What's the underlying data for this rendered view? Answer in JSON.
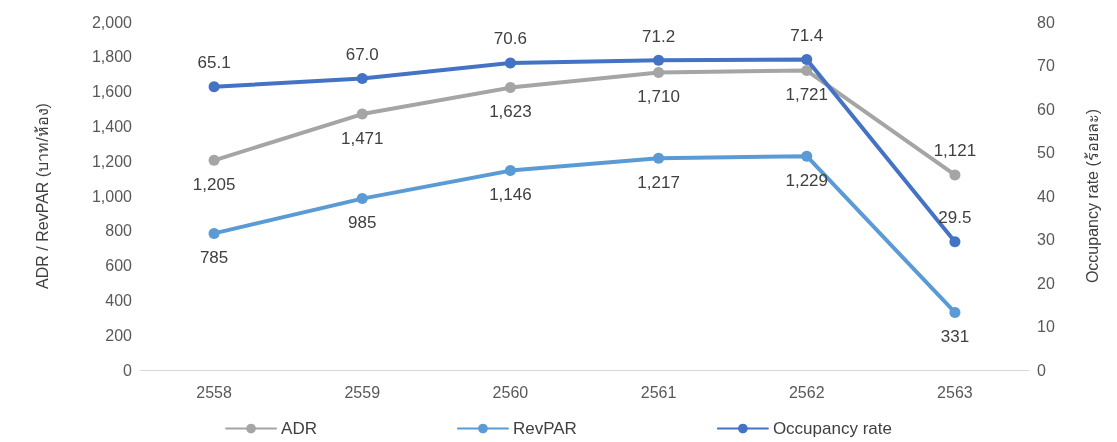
{
  "chart_data": {
    "type": "line",
    "ylabel": "ADR / RevPAR (บาท/ห้อง)",
    "y2label": "Occupancy rate (ร้อยละ)",
    "categories": [
      "2558",
      "2559",
      "2560",
      "2561",
      "2562",
      "2563"
    ],
    "series": [
      {
        "name": "ADR",
        "color": "#a5a5a5",
        "values": [
          1205,
          1471,
          1623,
          1710,
          1721,
          1121
        ],
        "value_labels": [
          "1,205",
          "1,471",
          "1,623",
          "1,710",
          "1,721",
          "1,121"
        ]
      },
      {
        "name": "RevPAR",
        "color": "#5b9bd5",
        "values": [
          785,
          985,
          1146,
          1217,
          1229,
          331
        ],
        "value_labels": [
          "785",
          "985",
          "1,146",
          "1,217",
          "1,229",
          "331"
        ]
      },
      {
        "name": "Occupancy rate",
        "color": "#4472c4",
        "axis": "y2",
        "values": [
          65.1,
          67.0,
          70.6,
          71.2,
          71.4,
          29.5
        ],
        "value_labels": [
          "65.1",
          "67.0",
          "70.6",
          "71.2",
          "71.4",
          "29.5"
        ]
      }
    ],
    "ylim": [
      0,
      2000
    ],
    "yticks": [
      0,
      200,
      400,
      600,
      800,
      {
        "value": 1000,
        "label": "1,000"
      },
      {
        "value": 1200,
        "label": "1,200"
      },
      {
        "value": 1400,
        "label": "1,400"
      },
      {
        "value": 1600,
        "label": "1,600"
      },
      {
        "value": 1800,
        "label": "1,800"
      },
      {
        "value": 2000,
        "label": "2,000"
      }
    ],
    "y2lim": [
      0,
      80
    ],
    "y2ticks": [
      0,
      10,
      20,
      30,
      40,
      50,
      60,
      70,
      80
    ],
    "grid": false,
    "legend": "bottom",
    "marker": "circle",
    "line_style": "solid"
  }
}
